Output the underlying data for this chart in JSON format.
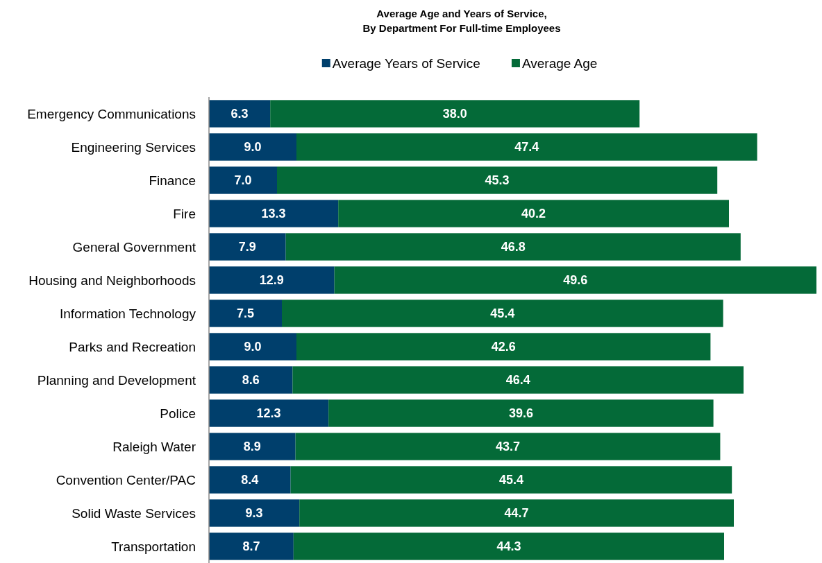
{
  "chart_data": {
    "type": "bar",
    "orientation": "horizontal",
    "stacked": true,
    "title": "Average Age and Years of Service,\nBy Department For Full-time Employees",
    "legend": "top",
    "categories": [
      "Emergency Communications",
      "Engineering Services",
      "Finance",
      "Fire",
      "General Government",
      "Housing and Neighborhoods",
      "Information Technology",
      "Parks and Recreation",
      "Planning and Development ",
      "Police",
      "Raleigh Water",
      "Convention Center/PAC",
      "Solid Waste Services",
      "Transportation"
    ],
    "series": [
      {
        "name": "Average Years of Service",
        "color": "#003f6c",
        "values": [
          6.3,
          9.0,
          7.0,
          13.3,
          7.9,
          12.9,
          7.5,
          9.0,
          8.6,
          12.3,
          8.9,
          8.4,
          9.3,
          8.7
        ],
        "value_labels": [
          "6.3",
          "9.0",
          "7.0",
          "13.3",
          "7.9",
          "12.9",
          "7.5",
          "9.0",
          "8.6",
          "12.3",
          "8.9",
          "8.4",
          "9.3",
          "8.7"
        ]
      },
      {
        "name": "Average Age",
        "color": "#046a38",
        "values": [
          38.0,
          47.4,
          45.3,
          40.2,
          46.8,
          49.6,
          45.4,
          42.6,
          46.4,
          39.6,
          43.7,
          45.4,
          44.7,
          44.3
        ],
        "value_labels": [
          "38.0",
          "47.4",
          "45.3",
          "40.2",
          "46.8",
          "49.6",
          "45.4",
          "42.6",
          "46.4",
          "39.6",
          "43.7",
          "45.4",
          "44.7",
          "44.3"
        ]
      }
    ]
  }
}
